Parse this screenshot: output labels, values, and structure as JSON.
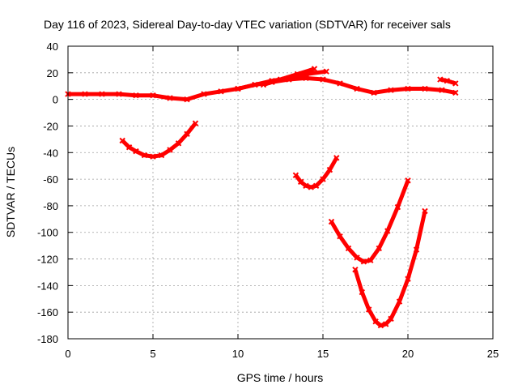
{
  "chart_data": {
    "type": "line",
    "title": "Day 116 of 2023, Sidereal Day-to-day VTEC variation (SDTVAR) for receiver sals",
    "xlabel": "GPS time / hours",
    "ylabel": "SDTVAR / TECUs",
    "xlim": [
      0,
      25
    ],
    "ylim": [
      -180,
      40
    ],
    "xticks": [
      0,
      5,
      10,
      15,
      20,
      25
    ],
    "yticks": [
      -180,
      -160,
      -140,
      -120,
      -100,
      -80,
      -60,
      -40,
      -20,
      0,
      20,
      40
    ],
    "grid": true,
    "color": "#ff0000",
    "series": [
      {
        "name": "baseline-arc",
        "x": [
          0,
          1,
          2,
          3,
          4,
          5,
          6,
          7,
          8,
          9,
          10,
          11,
          12,
          13,
          14,
          15,
          16,
          17,
          18,
          19,
          20,
          21,
          22,
          22.8
        ],
        "y": [
          4,
          4,
          4,
          4,
          3,
          3,
          1,
          0,
          4,
          6,
          8,
          11,
          13,
          15,
          16,
          15,
          12,
          8,
          5,
          7,
          8,
          8,
          7,
          5
        ]
      },
      {
        "name": "upper-arc",
        "x": [
          10,
          11,
          12,
          13,
          14,
          15.2
        ],
        "y": [
          8,
          11,
          14,
          16,
          19,
          21
        ]
      },
      {
        "name": "upper-arc-2",
        "x": [
          11.5,
          12.5,
          13.5,
          14.5
        ],
        "y": [
          11,
          15,
          19,
          23
        ]
      },
      {
        "name": "late-arc",
        "x": [
          21.9,
          22.3,
          22.8
        ],
        "y": [
          15,
          14,
          12
        ]
      },
      {
        "name": "dip-5h",
        "x": [
          3.2,
          3.6,
          4.0,
          4.5,
          5.0,
          5.5,
          6.0,
          6.5,
          7.0,
          7.5
        ],
        "y": [
          -31,
          -36,
          -39,
          -42,
          -43,
          -42,
          -38,
          -33,
          -26,
          -18
        ]
      },
      {
        "name": "dip-14h",
        "x": [
          13.4,
          13.7,
          14.0,
          14.3,
          14.6,
          15.0,
          15.4,
          15.8
        ],
        "y": [
          -57,
          -62,
          -65,
          -66,
          -65,
          -60,
          -53,
          -44
        ]
      },
      {
        "name": "dip-17h",
        "x": [
          15.5,
          16.0,
          16.5,
          17.0,
          17.4,
          17.8,
          18.3,
          18.8,
          19.4,
          20.0
        ],
        "y": [
          -92,
          -103,
          -112,
          -119,
          -122,
          -121,
          -112,
          -99,
          -81,
          -61
        ]
      },
      {
        "name": "dip-18h",
        "x": [
          16.9,
          17.3,
          17.7,
          18.1,
          18.4,
          18.7,
          19.0,
          19.5,
          20.0,
          20.5,
          21.0
        ],
        "y": [
          -128,
          -145,
          -158,
          -167,
          -170,
          -169,
          -165,
          -152,
          -135,
          -113,
          -84
        ]
      }
    ]
  }
}
